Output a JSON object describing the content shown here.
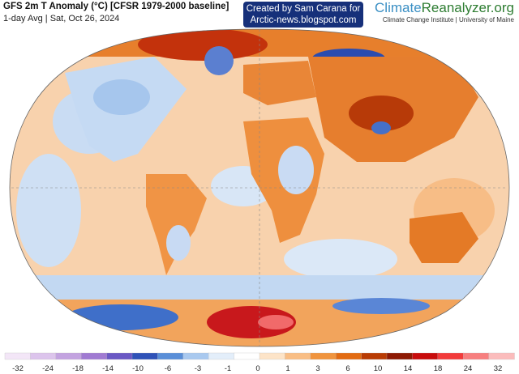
{
  "header": {
    "title": "GFS 2m T Anomaly (°C) [CFSR 1979-2000 baseline]",
    "subtitle": "1-day Avg | Sat, Oct 26, 2024",
    "credit_line1": "Created by Sam Carana for",
    "credit_line2": "Arctic-news.blogspot.com",
    "logo_part1": "Climate",
    "logo_part2": "Reanalyzer.org",
    "logo_subtitle": "Climate Change Institute | University of Maine"
  },
  "legend": {
    "labels": [
      "-32",
      "-24",
      "-18",
      "-14",
      "-10",
      "-6",
      "-3",
      "-1",
      "0",
      "1",
      "3",
      "6",
      "10",
      "14",
      "18",
      "24",
      "32"
    ],
    "colors": [
      "#f3e6f7",
      "#dcc4ec",
      "#c3a3e0",
      "#a07ad2",
      "#6a58c4",
      "#2f52b8",
      "#5a8fd8",
      "#a9c9ef",
      "#e3eefa",
      "#ffffff",
      "#fde4c8",
      "#f9be85",
      "#f0943e",
      "#e26b12",
      "#b93c04",
      "#8e1a03",
      "#c80c0c",
      "#f23b3b",
      "#f77f7f",
      "#fbbcbc"
    ]
  },
  "map": {
    "projection": "Winkel Tripel (global)",
    "ocean_anomaly_color": "#f7c9a0",
    "warm_color": "#e87a22",
    "hot_color": "#d9221d",
    "cold_color": "#4b7fd6",
    "very_cold_color": "#1f3fa8"
  }
}
